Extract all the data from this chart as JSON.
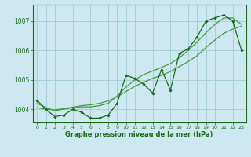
{
  "title": "Graphe pression niveau de la mer (hPa)",
  "bg_color": "#cde8f0",
  "grid_color": "#a8cfd8",
  "line_color_main": "#1a6b1a",
  "line_color_smooth": "#4a9a4a",
  "xlim": [
    -0.5,
    23.5
  ],
  "ylim": [
    1003.55,
    1007.55
  ],
  "yticks": [
    1004,
    1005,
    1006,
    1007
  ],
  "xticks": [
    0,
    1,
    2,
    3,
    4,
    5,
    6,
    7,
    8,
    9,
    10,
    11,
    12,
    13,
    14,
    15,
    16,
    17,
    18,
    19,
    20,
    21,
    22,
    23
  ],
  "series_main": [
    1004.3,
    1004.0,
    1003.75,
    1003.8,
    1004.0,
    1003.9,
    1003.7,
    1003.7,
    1003.8,
    1004.2,
    1005.15,
    1005.05,
    1004.85,
    1004.55,
    1005.35,
    1004.65,
    1005.9,
    1006.05,
    1006.45,
    1007.0,
    1007.1,
    1007.2,
    1007.0,
    1006.0
  ],
  "series_smooth1": [
    1004.2,
    1004.05,
    1003.95,
    1004.0,
    1004.05,
    1004.08,
    1004.08,
    1004.12,
    1004.2,
    1004.45,
    1004.75,
    1005.0,
    1005.18,
    1005.3,
    1005.42,
    1005.55,
    1005.75,
    1006.0,
    1006.28,
    1006.6,
    1006.88,
    1007.1,
    1007.1,
    1006.88
  ],
  "series_smooth2": [
    1004.05,
    1004.0,
    1003.98,
    1004.02,
    1004.07,
    1004.12,
    1004.15,
    1004.2,
    1004.28,
    1004.42,
    1004.6,
    1004.78,
    1004.92,
    1005.05,
    1005.15,
    1005.28,
    1005.45,
    1005.62,
    1005.82,
    1006.1,
    1006.35,
    1006.58,
    1006.72,
    1006.82
  ]
}
